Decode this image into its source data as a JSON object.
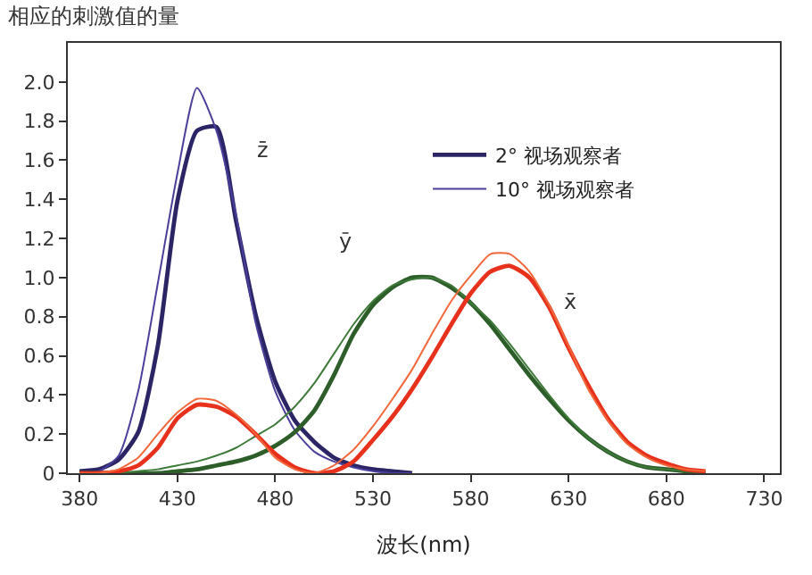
{
  "chart_data": {
    "type": "line",
    "title": "相应的刺激值的量",
    "xlabel": "波长(nm)",
    "xlim": [
      374,
      738
    ],
    "xticks": [
      380,
      430,
      480,
      530,
      580,
      630,
      680,
      730
    ],
    "ylim": [
      0,
      2.2
    ],
    "yticks": [
      0,
      0.2,
      0.4,
      0.6,
      0.8,
      {
        "value": 1.0,
        "label": "1.0"
      },
      1.2,
      1.4,
      1.6,
      1.8,
      {
        "value": 2.0,
        "label": "2.0"
      }
    ],
    "legend": "right",
    "marker": "none",
    "line_style": "solid",
    "series": [
      {
        "name": "2° 视场观察者",
        "color": "#2b2566",
        "x": [
          380,
          390,
          400,
          410,
          420,
          430,
          440,
          450,
          460,
          470,
          480,
          490,
          500,
          510,
          520,
          530,
          540,
          550
        ],
        "values": [
          0.01,
          0.02,
          0.07,
          0.21,
          0.65,
          1.39,
          1.75,
          1.77,
          1.29,
          0.81,
          0.47,
          0.27,
          0.16,
          0.08,
          0.04,
          0.02,
          0.01,
          0.0
        ]
      },
      {
        "name": "10° 视场观察者",
        "color": "#4a3f9a",
        "x": [
          380,
          390,
          400,
          410,
          420,
          430,
          440,
          450,
          460,
          470,
          480,
          490,
          500,
          510,
          520,
          530,
          540,
          550
        ],
        "values": [
          0.0,
          0.01,
          0.09,
          0.42,
          0.97,
          1.53,
          1.97,
          1.75,
          1.32,
          0.77,
          0.42,
          0.22,
          0.11,
          0.06,
          0.03,
          0.01,
          0.0,
          0.0
        ]
      },
      {
        "color": "#2d5e2a",
        "x": [
          380,
          390,
          400,
          410,
          420,
          430,
          440,
          450,
          460,
          470,
          480,
          490,
          500,
          510,
          520,
          530,
          540,
          550,
          560,
          570,
          580,
          590,
          600,
          610,
          620,
          630,
          640,
          650,
          660,
          670,
          680,
          690,
          700
        ],
        "values": [
          0.0,
          0.0,
          0.0,
          0.0,
          0.0,
          0.01,
          0.02,
          0.04,
          0.06,
          0.09,
          0.14,
          0.21,
          0.32,
          0.5,
          0.71,
          0.86,
          0.95,
          1.0,
          1.0,
          0.95,
          0.87,
          0.76,
          0.63,
          0.5,
          0.38,
          0.27,
          0.18,
          0.11,
          0.06,
          0.03,
          0.02,
          0.01,
          0.0
        ]
      },
      {
        "color": "#3f7a3a",
        "x": [
          380,
          390,
          400,
          410,
          420,
          430,
          440,
          450,
          460,
          470,
          480,
          490,
          500,
          510,
          520,
          530,
          540,
          550,
          560,
          570,
          580,
          590,
          600,
          610,
          620,
          630,
          640,
          650,
          660,
          670,
          680,
          690,
          700
        ],
        "values": [
          0.0,
          0.0,
          0.0,
          0.01,
          0.02,
          0.04,
          0.06,
          0.09,
          0.13,
          0.19,
          0.25,
          0.34,
          0.46,
          0.61,
          0.76,
          0.88,
          0.96,
          0.99,
          1.0,
          0.96,
          0.87,
          0.78,
          0.66,
          0.53,
          0.4,
          0.28,
          0.18,
          0.11,
          0.06,
          0.03,
          0.02,
          0.01,
          0.0
        ]
      },
      {
        "color": "#e8311c",
        "x": [
          380,
          390,
          400,
          410,
          420,
          430,
          440,
          450,
          460,
          470,
          480,
          490,
          500,
          510,
          520,
          530,
          540,
          550,
          560,
          570,
          580,
          590,
          600,
          610,
          620,
          630,
          640,
          650,
          660,
          670,
          680,
          690,
          700
        ],
        "values": [
          0.0,
          0.0,
          0.01,
          0.04,
          0.13,
          0.28,
          0.35,
          0.34,
          0.29,
          0.2,
          0.1,
          0.03,
          0.0,
          0.01,
          0.06,
          0.17,
          0.29,
          0.43,
          0.59,
          0.76,
          0.92,
          1.03,
          1.06,
          1.0,
          0.85,
          0.64,
          0.45,
          0.28,
          0.16,
          0.09,
          0.05,
          0.02,
          0.01
        ]
      },
      {
        "color": "#f2673a",
        "x": [
          380,
          390,
          400,
          410,
          420,
          430,
          440,
          450,
          460,
          470,
          480,
          490,
          500,
          510,
          520,
          530,
          540,
          550,
          560,
          570,
          580,
          590,
          600,
          610,
          620,
          630,
          640,
          650,
          660,
          670,
          680,
          690,
          700
        ],
        "values": [
          0.0,
          0.0,
          0.02,
          0.08,
          0.2,
          0.31,
          0.38,
          0.37,
          0.3,
          0.2,
          0.08,
          0.02,
          0.0,
          0.04,
          0.12,
          0.24,
          0.38,
          0.53,
          0.71,
          0.88,
          1.01,
          1.12,
          1.12,
          1.03,
          0.86,
          0.65,
          0.43,
          0.27,
          0.15,
          0.08,
          0.04,
          0.02,
          0.01
        ]
      }
    ],
    "annotations": [
      "z̄",
      "ȳ",
      "x̄"
    ]
  }
}
